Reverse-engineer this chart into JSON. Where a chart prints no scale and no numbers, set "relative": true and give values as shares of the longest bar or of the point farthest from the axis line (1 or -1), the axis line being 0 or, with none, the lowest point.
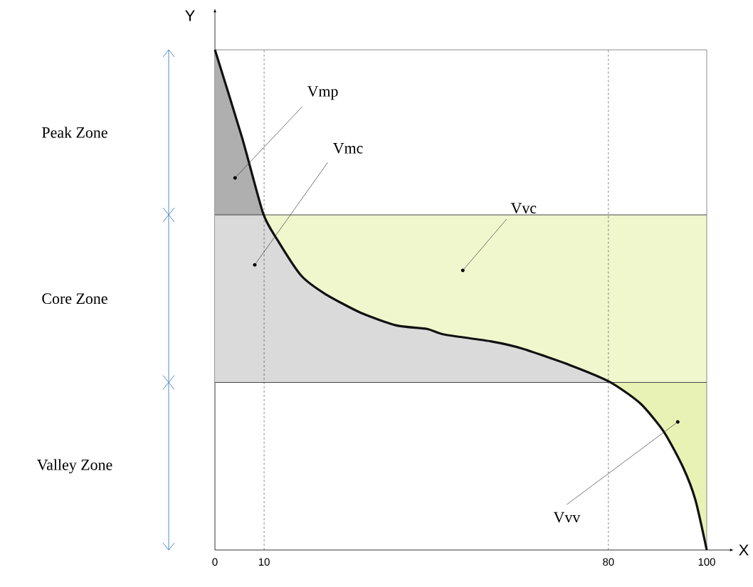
{
  "chart_data": {
    "type": "line",
    "relative": true,
    "xlabel": "X",
    "ylabel": "Y",
    "xlim": [
      0,
      100
    ],
    "xticks": [
      0,
      10,
      80,
      100
    ],
    "x": [
      0,
      5.5,
      9.8,
      12.7,
      17.5,
      22.4,
      29.7,
      36.9,
      43.1,
      46.5,
      56.2,
      62.4,
      72.1,
      80.3,
      86.5,
      91.3,
      95.2,
      97.7,
      100
    ],
    "series": [
      {
        "color": "#111111",
        "values": [
          1.0,
          0.825,
          0.673,
          0.62,
          0.549,
          0.512,
          0.474,
          0.449,
          0.442,
          0.431,
          0.417,
          0.403,
          0.37,
          0.336,
          0.293,
          0.236,
          0.165,
          0.1,
          0
        ]
      }
    ],
    "ref_lines": [
      {
        "axis": "x",
        "value": 10,
        "line_style": "dashed",
        "color": "#333333"
      },
      {
        "axis": "x",
        "value": 80,
        "line_style": "dashed",
        "color": "#333333"
      },
      {
        "axis": "y",
        "value": 0.67,
        "line_style": "solid",
        "color": "#444444"
      },
      {
        "axis": "y",
        "value": 0.335,
        "line_style": "solid",
        "color": "#444444"
      }
    ],
    "annotations": [
      "Peak Zone",
      "Core Zone",
      "Valley Zone",
      {
        "text": "Vmp",
        "x": 4.1,
        "y": 0.744
      },
      {
        "text": "Vmc",
        "x": 8.1,
        "y": 0.57
      },
      {
        "text": "Vvc",
        "x": 50.4,
        "y": 0.559
      },
      {
        "text": "Vvv",
        "x": 94.1,
        "y": 0.256
      }
    ]
  }
}
